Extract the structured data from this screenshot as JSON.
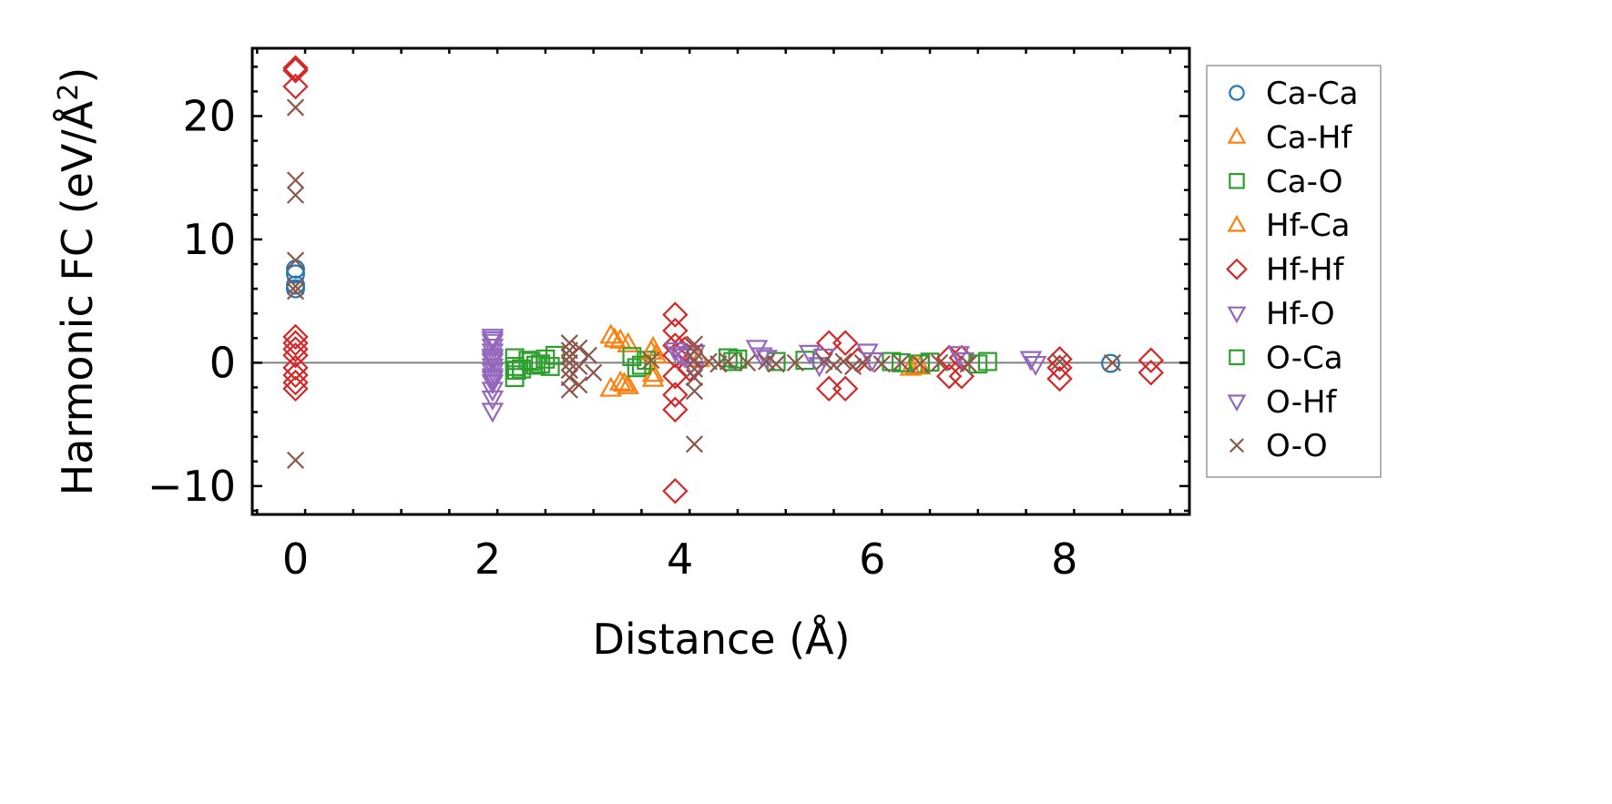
{
  "chart_data": {
    "type": "scatter",
    "xlabel": "Distance (Å)",
    "ylabel": "Harmonic FC (eV/Å²)",
    "ylabel_parts": {
      "main": "Harmonic FC (eV/Å",
      "sup": "2",
      "end": ")"
    },
    "xlim": [
      -0.45,
      9.3
    ],
    "ylim": [
      -12.3,
      25.5
    ],
    "xticks": [
      0,
      2,
      4,
      6,
      8
    ],
    "xtick_labels": [
      "0",
      "2",
      "4",
      "6",
      "8"
    ],
    "yticks": [
      -10,
      0,
      10,
      20
    ],
    "ytick_labels": [
      "−10",
      "0",
      "10",
      "20"
    ],
    "grid": false,
    "reference_line_y": 0,
    "legend_position": "outside-right",
    "series": [
      {
        "name": "Ca-Ca",
        "marker": "circle",
        "color": "#1f77b4",
        "points": [
          [
            0,
            7.6
          ],
          [
            0,
            7.2
          ],
          [
            0,
            6.3
          ],
          [
            0,
            6.0
          ],
          [
            8.48,
            -0.05
          ]
        ]
      },
      {
        "name": "Ca-Hf",
        "marker": "triangle-up",
        "color": "#ff7f0e",
        "points": [
          [
            3.28,
            2.2
          ],
          [
            3.38,
            1.8
          ],
          [
            3.46,
            1.5
          ],
          [
            3.28,
            -2.1
          ],
          [
            3.38,
            -1.6
          ],
          [
            3.46,
            -1.9
          ],
          [
            3.72,
            1.2
          ],
          [
            3.75,
            0.6
          ],
          [
            3.72,
            -1.3
          ],
          [
            4.2,
            0.3
          ],
          [
            6.4,
            -0.4
          ],
          [
            6.5,
            -0.3
          ]
        ]
      },
      {
        "name": "Ca-O",
        "marker": "square",
        "color": "#2ca02c",
        "points": [
          [
            2.28,
            0.4
          ],
          [
            2.28,
            -0.3
          ],
          [
            2.28,
            -1.2
          ],
          [
            2.35,
            -0.5
          ],
          [
            2.42,
            0.2
          ],
          [
            2.5,
            -0.2
          ],
          [
            2.6,
            0.3
          ],
          [
            2.65,
            -0.3
          ],
          [
            2.7,
            0.6
          ],
          [
            3.5,
            0.5
          ],
          [
            3.55,
            -0.4
          ],
          [
            3.65,
            0.2
          ],
          [
            4.5,
            0.4
          ],
          [
            4.6,
            0.3
          ],
          [
            5.0,
            0.1
          ],
          [
            5.3,
            0.2
          ],
          [
            6.2,
            0.1
          ],
          [
            6.5,
            -0.1
          ],
          [
            6.6,
            0.05
          ],
          [
            7.2,
            0.1
          ]
        ]
      },
      {
        "name": "Hf-Ca",
        "marker": "triangle-up",
        "color": "#ff7f0e",
        "points": [
          [
            3.32,
            1.9
          ],
          [
            3.42,
            -1.7
          ],
          [
            3.7,
            0.9
          ],
          [
            3.72,
            -0.9
          ],
          [
            6.45,
            -0.3
          ]
        ]
      },
      {
        "name": "Hf-Hf",
        "marker": "diamond",
        "color": "#d62728",
        "points": [
          [
            0,
            23.9
          ],
          [
            0,
            23.7
          ],
          [
            0,
            22.4
          ],
          [
            0,
            2.1
          ],
          [
            0,
            1.6
          ],
          [
            0,
            1.1
          ],
          [
            0,
            0.6
          ],
          [
            0,
            -0.4
          ],
          [
            0,
            -1.0
          ],
          [
            0,
            -1.6
          ],
          [
            0,
            -2.1
          ],
          [
            3.95,
            3.9
          ],
          [
            3.95,
            2.6
          ],
          [
            3.95,
            1.4
          ],
          [
            3.95,
            0.6
          ],
          [
            3.95,
            -1.1
          ],
          [
            3.95,
            -2.6
          ],
          [
            3.95,
            -3.8
          ],
          [
            3.95,
            -10.4
          ],
          [
            4.05,
            1.1
          ],
          [
            4.1,
            -0.5
          ],
          [
            5.55,
            1.6
          ],
          [
            5.55,
            -2.1
          ],
          [
            5.72,
            1.6
          ],
          [
            5.72,
            -2.1
          ],
          [
            5.85,
            0.2
          ],
          [
            6.8,
            0.4
          ],
          [
            6.8,
            -1.1
          ],
          [
            6.93,
            0.4
          ],
          [
            6.93,
            -1.1
          ],
          [
            7.95,
            0.3
          ],
          [
            7.95,
            -0.4
          ],
          [
            7.95,
            -1.3
          ],
          [
            8.9,
            0.2
          ],
          [
            8.9,
            -0.8
          ]
        ]
      },
      {
        "name": "Hf-O",
        "marker": "triangle-down",
        "color": "#9467bd",
        "points": [
          [
            2.05,
            2.1
          ],
          [
            2.05,
            1.7
          ],
          [
            2.05,
            1.3
          ],
          [
            2.05,
            0.9
          ],
          [
            2.05,
            0.5
          ],
          [
            2.05,
            0.1
          ],
          [
            2.05,
            -0.3
          ],
          [
            2.05,
            -0.7
          ],
          [
            2.05,
            -1.1
          ],
          [
            2.05,
            -1.6
          ],
          [
            2.05,
            -2.2
          ],
          [
            2.05,
            -2.9
          ],
          [
            2.05,
            -3.9
          ],
          [
            3.95,
            1.0
          ],
          [
            4.05,
            0.5
          ],
          [
            4.15,
            0.8
          ],
          [
            4.15,
            -0.5
          ],
          [
            4.8,
            1.2
          ],
          [
            4.85,
            0.6
          ],
          [
            5.35,
            0.8
          ],
          [
            5.45,
            -0.2
          ],
          [
            5.95,
            0.9
          ],
          [
            6.9,
            0.7
          ],
          [
            6.95,
            0.2
          ],
          [
            7.65,
            0.3
          ],
          [
            7.7,
            -0.1
          ]
        ]
      },
      {
        "name": "O-Ca",
        "marker": "square",
        "color": "#2ca02c",
        "points": [
          [
            2.3,
            -0.6
          ],
          [
            2.45,
            0.1
          ],
          [
            2.55,
            -0.1
          ],
          [
            3.6,
            -0.2
          ],
          [
            4.55,
            0.1
          ],
          [
            6.3,
            0.0
          ],
          [
            7.1,
            -0.1
          ]
        ]
      },
      {
        "name": "O-Hf",
        "marker": "triangle-down",
        "color": "#9467bd",
        "points": [
          [
            2.05,
            1.9
          ],
          [
            2.05,
            0.3
          ],
          [
            2.05,
            -1.3
          ],
          [
            4.0,
            0.7
          ],
          [
            4.9,
            0.4
          ],
          [
            5.5,
            0.5
          ],
          [
            6.0,
            0.2
          ]
        ]
      },
      {
        "name": "O-O",
        "marker": "x",
        "color": "#8c564b",
        "points": [
          [
            0,
            20.7
          ],
          [
            0,
            14.8
          ],
          [
            0,
            13.6
          ],
          [
            0,
            8.3
          ],
          [
            0,
            6.2
          ],
          [
            0,
            5.8
          ],
          [
            0,
            -7.9
          ],
          [
            2.85,
            1.6
          ],
          [
            2.85,
            1.0
          ],
          [
            2.85,
            0.5
          ],
          [
            2.85,
            0.0
          ],
          [
            2.85,
            -0.6
          ],
          [
            2.85,
            -1.2
          ],
          [
            2.85,
            -2.2
          ],
          [
            2.95,
            1.2
          ],
          [
            2.95,
            -0.3
          ],
          [
            2.95,
            -1.8
          ],
          [
            3.05,
            0.6
          ],
          [
            3.1,
            -0.8
          ],
          [
            3.7,
            0.2
          ],
          [
            4.15,
            1.5
          ],
          [
            4.15,
            0.9
          ],
          [
            4.15,
            0.2
          ],
          [
            4.15,
            -0.5
          ],
          [
            4.15,
            -1.2
          ],
          [
            4.15,
            -2.3
          ],
          [
            4.15,
            -6.6
          ],
          [
            4.3,
            0.1
          ],
          [
            4.4,
            -0.1
          ],
          [
            4.5,
            0.1
          ],
          [
            4.7,
            0.0
          ],
          [
            4.9,
            0.1
          ],
          [
            5.0,
            -0.1
          ],
          [
            5.2,
            0.0
          ],
          [
            5.5,
            0.1
          ],
          [
            5.6,
            -0.2
          ],
          [
            5.7,
            0.1
          ],
          [
            5.8,
            -0.3
          ],
          [
            5.9,
            0.0
          ],
          [
            6.1,
            -0.1
          ],
          [
            6.3,
            0.0
          ],
          [
            6.5,
            -0.1
          ],
          [
            6.7,
            0.0
          ],
          [
            7.0,
            -0.1
          ],
          [
            7.95,
            0.1
          ],
          [
            8.5,
            0.0
          ]
        ]
      }
    ]
  }
}
